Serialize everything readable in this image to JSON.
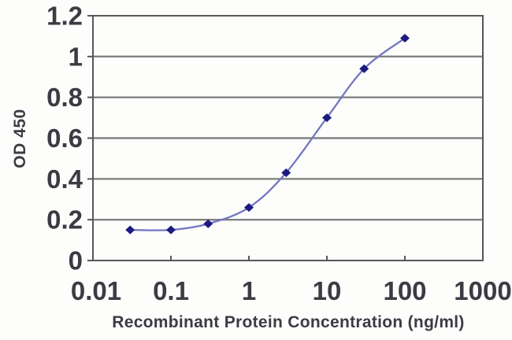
{
  "chart_data": {
    "type": "line",
    "title": "",
    "xlabel": "Recombinant Protein Concentration (ng/ml)",
    "ylabel": "OD 450",
    "x_scale": "log",
    "xlim": [
      0.01,
      1000
    ],
    "ylim": [
      0,
      1.2
    ],
    "xticks": [
      0.01,
      0.1,
      1,
      10,
      100,
      1000
    ],
    "xtick_labels": [
      "0.01",
      "0.1",
      "1",
      "10",
      "100",
      "1000"
    ],
    "yticks": [
      0,
      0.2,
      0.4,
      0.6,
      0.8,
      1,
      1.2
    ],
    "ytick_labels": [
      "0",
      "0.2",
      "0.4",
      "0.6",
      "0.8",
      "1",
      "1.2"
    ],
    "grid": "horizontal",
    "legend": "none",
    "series": [
      {
        "name": "OD 450",
        "marker": "diamond",
        "x": [
          0.03,
          0.1,
          0.3,
          1,
          3,
          10,
          30,
          100
        ],
        "y": [
          0.15,
          0.15,
          0.18,
          0.26,
          0.43,
          0.7,
          0.94,
          1.09
        ]
      }
    ]
  },
  "colors": {
    "line": "#7477c2",
    "marker": "#1b1b80",
    "grid": "#828282",
    "axis": "#575757",
    "text": "#3b3b44",
    "background": "#fdfdfb"
  }
}
